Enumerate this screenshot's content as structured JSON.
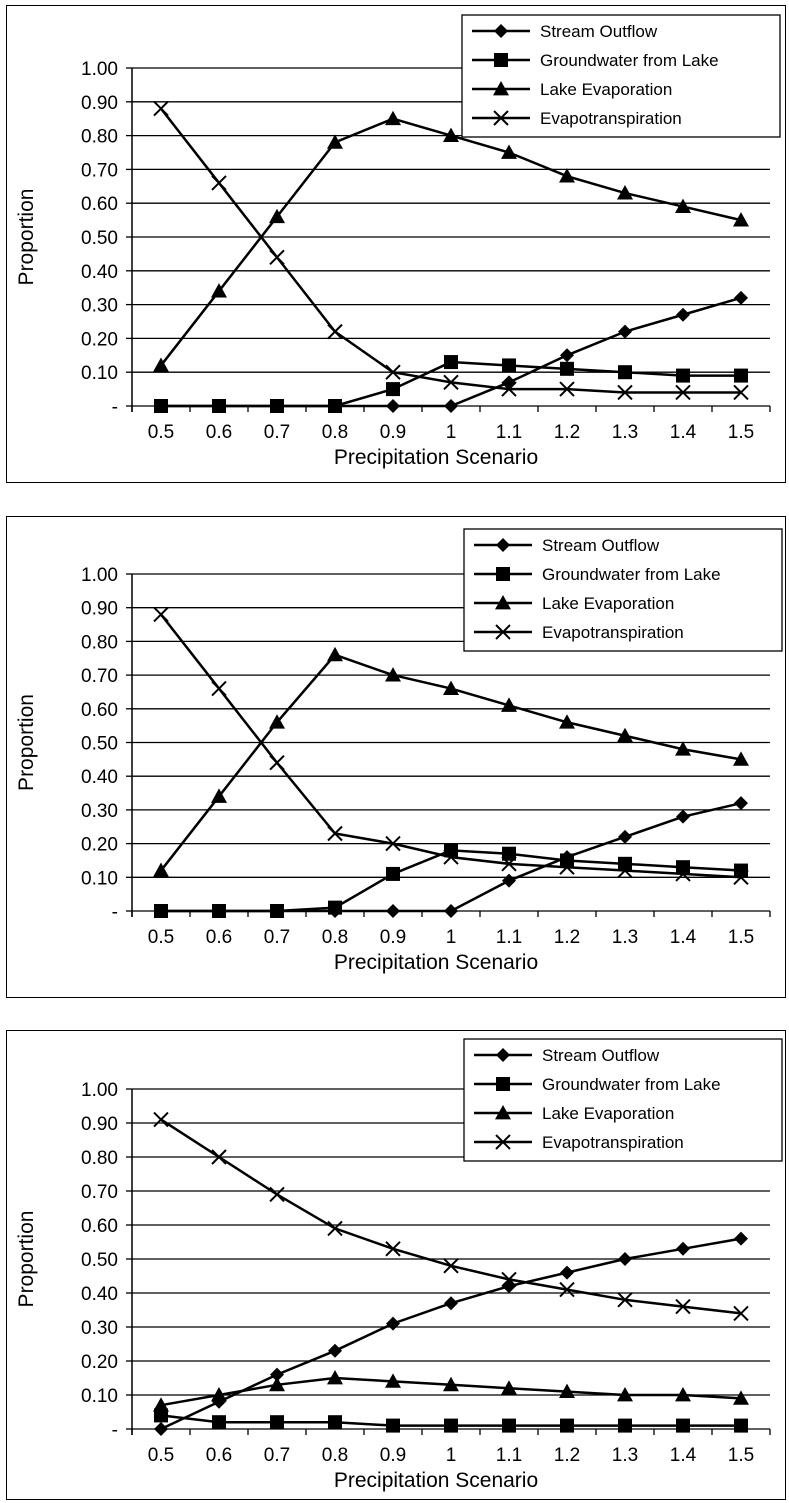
{
  "chart_data": [
    {
      "type": "line",
      "xlabel": "Precipitation Scenario",
      "ylabel": "Proportion",
      "ylim": [
        0,
        1
      ],
      "x": [
        0.5,
        0.6,
        0.7,
        0.8,
        0.9,
        1,
        1.1,
        1.2,
        1.3,
        1.4,
        1.5
      ],
      "x_tick_labels": [
        "0.5",
        "0.6",
        "0.7",
        "0.8",
        "0.9",
        "1",
        "1.1",
        "1.2",
        "1.3",
        "1.4",
        "1.5"
      ],
      "y_tick_labels": [
        "-",
        "0.10",
        "0.20",
        "0.30",
        "0.40",
        "0.50",
        "0.60",
        "0.70",
        "0.80",
        "0.90",
        "1.00"
      ],
      "grid": true,
      "legend_position": "top-right",
      "series": [
        {
          "name": "Stream Outflow",
          "marker": "diamond",
          "values": [
            0,
            0,
            0,
            0,
            0,
            0,
            0.07,
            0.15,
            0.22,
            0.27,
            0.32
          ]
        },
        {
          "name": "Groundwater from Lake",
          "marker": "square",
          "values": [
            0,
            0,
            0,
            0,
            0.05,
            0.13,
            0.12,
            0.11,
            0.1,
            0.09,
            0.09
          ]
        },
        {
          "name": "Lake Evaporation",
          "marker": "triangle",
          "values": [
            0.12,
            0.34,
            0.56,
            0.78,
            0.85,
            0.8,
            0.75,
            0.68,
            0.63,
            0.59,
            0.55
          ]
        },
        {
          "name": "Evapotranspiration",
          "marker": "x",
          "values": [
            0.88,
            0.66,
            0.44,
            0.22,
            0.1,
            0.07,
            0.05,
            0.05,
            0.04,
            0.04,
            0.04
          ]
        }
      ]
    },
    {
      "type": "line",
      "xlabel": "Precipitation Scenario",
      "ylabel": "Proportion",
      "ylim": [
        0,
        1
      ],
      "x": [
        0.5,
        0.6,
        0.7,
        0.8,
        0.9,
        1,
        1.1,
        1.2,
        1.3,
        1.4,
        1.5
      ],
      "x_tick_labels": [
        "0.5",
        "0.6",
        "0.7",
        "0.8",
        "0.9",
        "1",
        "1.1",
        "1.2",
        "1.3",
        "1.4",
        "1.5"
      ],
      "y_tick_labels": [
        "-",
        "0.10",
        "0.20",
        "0.30",
        "0.40",
        "0.50",
        "0.60",
        "0.70",
        "0.80",
        "0.90",
        "1.00"
      ],
      "grid": true,
      "legend_position": "top-right",
      "series": [
        {
          "name": "Stream Outflow",
          "marker": "diamond",
          "values": [
            0,
            0,
            0,
            0,
            0,
            0,
            0.09,
            0.16,
            0.22,
            0.28,
            0.32
          ]
        },
        {
          "name": "Groundwater from Lake",
          "marker": "square",
          "values": [
            0,
            0,
            0,
            0.01,
            0.11,
            0.18,
            0.17,
            0.15,
            0.14,
            0.13,
            0.12
          ]
        },
        {
          "name": "Lake Evaporation",
          "marker": "triangle",
          "values": [
            0.12,
            0.34,
            0.56,
            0.76,
            0.7,
            0.66,
            0.61,
            0.56,
            0.52,
            0.48,
            0.45
          ]
        },
        {
          "name": "Evapotranspiration",
          "marker": "x",
          "values": [
            0.88,
            0.66,
            0.44,
            0.23,
            0.2,
            0.16,
            0.14,
            0.13,
            0.12,
            0.11,
            0.1
          ]
        }
      ]
    },
    {
      "type": "line",
      "xlabel": "Precipitation Scenario",
      "ylabel": "Proportion",
      "ylim": [
        0,
        1
      ],
      "x": [
        0.5,
        0.6,
        0.7,
        0.8,
        0.9,
        1,
        1.1,
        1.2,
        1.3,
        1.4,
        1.5
      ],
      "x_tick_labels": [
        "0.5",
        "0.6",
        "0.7",
        "0.8",
        "0.9",
        "1",
        "1.1",
        "1.2",
        "1.3",
        "1.4",
        "1.5"
      ],
      "y_tick_labels": [
        "-",
        "0.10",
        "0.20",
        "0.30",
        "0.40",
        "0.50",
        "0.60",
        "0.70",
        "0.80",
        "0.90",
        "1.00"
      ],
      "grid": true,
      "legend_position": "top-right",
      "series": [
        {
          "name": "Stream Outflow",
          "marker": "diamond",
          "values": [
            0,
            0.08,
            0.16,
            0.23,
            0.31,
            0.37,
            0.42,
            0.46,
            0.5,
            0.53,
            0.56
          ]
        },
        {
          "name": "Groundwater from Lake",
          "marker": "square",
          "values": [
            0.04,
            0.02,
            0.02,
            0.02,
            0.01,
            0.01,
            0.01,
            0.01,
            0.01,
            0.01,
            0.01
          ]
        },
        {
          "name": "Lake Evaporation",
          "marker": "triangle",
          "values": [
            0.07,
            0.1,
            0.13,
            0.15,
            0.14,
            0.13,
            0.12,
            0.11,
            0.1,
            0.1,
            0.09
          ]
        },
        {
          "name": "Evapotranspiration",
          "marker": "x",
          "values": [
            0.91,
            0.8,
            0.69,
            0.59,
            0.53,
            0.48,
            0.44,
            0.41,
            0.38,
            0.36,
            0.34
          ]
        }
      ]
    }
  ]
}
